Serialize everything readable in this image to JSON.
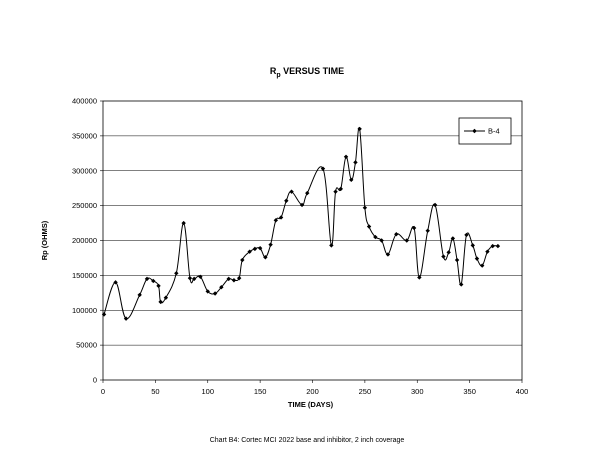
{
  "chart_data": {
    "type": "line",
    "title_main": "R",
    "title_sub": "p",
    "title_rest": " VERSUS TIME",
    "xlabel": "TIME (DAYS)",
    "ylabel": "Rp (OHMS)",
    "xlim": [
      0,
      400
    ],
    "ylim": [
      0,
      400000
    ],
    "xticks": [
      0,
      50,
      100,
      150,
      200,
      250,
      300,
      350,
      400
    ],
    "yticks": [
      0,
      50000,
      100000,
      150000,
      200000,
      250000,
      300000,
      350000,
      400000
    ],
    "grid": true,
    "legend_position": "top-right",
    "series": [
      {
        "name": "B-4",
        "color": "#000000",
        "x": [
          1,
          12,
          22,
          35,
          42,
          48,
          53,
          55,
          60,
          70,
          77,
          83,
          87,
          93,
          100,
          107,
          113,
          120,
          125,
          130,
          133,
          140,
          145,
          150,
          155,
          160,
          165,
          170,
          175,
          180,
          190,
          195,
          210,
          218,
          222,
          227,
          232,
          237,
          241,
          245,
          250,
          254,
          260,
          266,
          272,
          280,
          290,
          297,
          302,
          310,
          317,
          325,
          330,
          334,
          338,
          342,
          347,
          353,
          357,
          362,
          367,
          372,
          377
        ],
        "y": [
          94000,
          140000,
          88000,
          122000,
          145000,
          142000,
          135000,
          112000,
          118000,
          153000,
          225000,
          146000,
          145000,
          148000,
          127000,
          124000,
          133000,
          145000,
          143000,
          146000,
          172000,
          184000,
          188000,
          189000,
          176000,
          194000,
          229000,
          233000,
          257000,
          270000,
          251000,
          268000,
          303000,
          193000,
          270000,
          274000,
          320000,
          287000,
          312000,
          360000,
          247000,
          220000,
          205000,
          200000,
          180000,
          209000,
          200000,
          218000,
          147000,
          214000,
          251000,
          177000,
          183000,
          203000,
          172000,
          137000,
          208000,
          193000,
          174000,
          164000,
          184000,
          192000,
          192000
        ]
      }
    ],
    "caption": "Chart B4: Cortec MCI 2022 base and inhibitor, 2 inch coverage"
  }
}
